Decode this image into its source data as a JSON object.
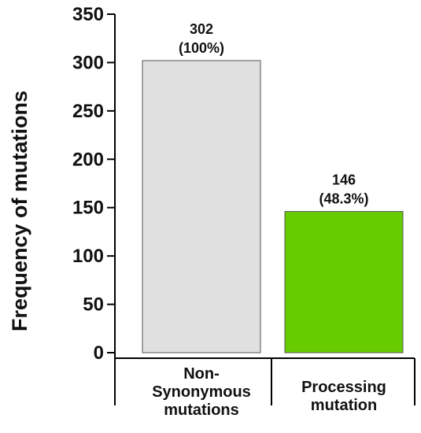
{
  "chart_data": {
    "type": "bar",
    "title": "",
    "xlabel": "",
    "ylabel": "Frequency of mutations",
    "ylim": [
      0,
      350
    ],
    "yticks": [
      0,
      50,
      100,
      150,
      200,
      250,
      300,
      350
    ],
    "grid": false,
    "legend": "none",
    "categories": [
      [
        "Non-",
        "Synonymous",
        "mutations"
      ],
      [
        "Processing",
        "mutation"
      ]
    ],
    "values": [
      302,
      146
    ],
    "data_labels": [
      [
        "302",
        "(100%)"
      ],
      [
        "146",
        "(48.3%)"
      ]
    ],
    "colors": [
      "#e0e0e0",
      "#66cc00"
    ],
    "edge_color": "#555555"
  }
}
